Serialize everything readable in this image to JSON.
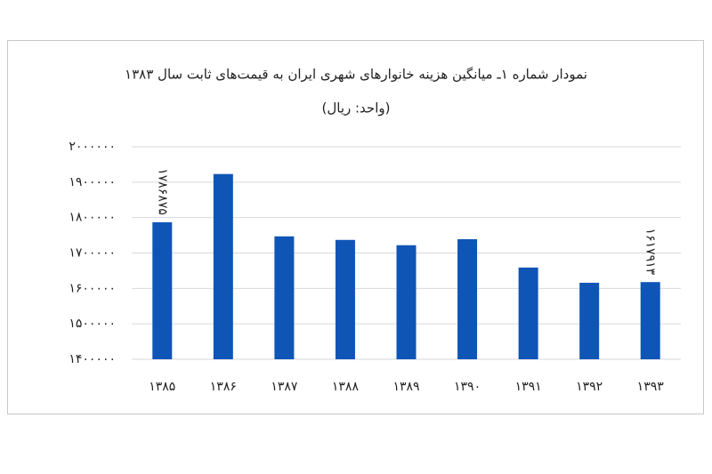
{
  "chart_data": {
    "type": "bar",
    "title": "نمودار شماره ۱ـ میانگین هزینه خانوارهای شهری ایران به قیمت‌های ثابت سال ۱۳۸۳",
    "subtitle": "(واحد: ریال)",
    "categories": [
      "۱۳۸۵",
      "۱۳۸۶",
      "۱۳۸۷",
      "۱۳۸۸",
      "۱۳۸۹",
      "۱۳۹۰",
      "۱۳۹۱",
      "۱۳۹۲",
      "۱۳۹۳"
    ],
    "values": [
      1786875,
      1923000,
      1747000,
      1737000,
      1722000,
      1739000,
      1659000,
      1616000,
      1617913
    ],
    "value_labels": [
      "۱۷۸۶۸۷۵",
      null,
      null,
      null,
      null,
      null,
      null,
      null,
      "۱۶۱۷۹۱۳"
    ],
    "color": "#0f55b6",
    "ylim": [
      1400000,
      2000000
    ],
    "yticks": [
      {
        "value": 1400000,
        "label": "۱۴۰۰۰۰۰"
      },
      {
        "value": 1500000,
        "label": "۱۵۰۰۰۰۰"
      },
      {
        "value": 1600000,
        "label": "۱۶۰۰۰۰۰"
      },
      {
        "value": 1700000,
        "label": "۱۷۰۰۰۰۰"
      },
      {
        "value": 1800000,
        "label": "۱۸۰۰۰۰۰"
      },
      {
        "value": 1900000,
        "label": "۱۹۰۰۰۰۰"
      },
      {
        "value": 2000000,
        "label": "۲۰۰۰۰۰۰"
      }
    ],
    "grid": true
  }
}
